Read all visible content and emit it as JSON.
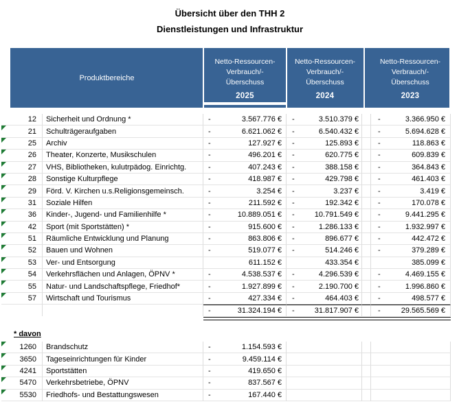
{
  "title": {
    "line1": "Übersicht über den THH 2",
    "line2": "Dienstleistungen und Infrastruktur"
  },
  "colors": {
    "header_bg": "#386394",
    "header_text": "#ffffff",
    "marker_green": "#1e7b34",
    "gridline": "#dcdcdc"
  },
  "header": {
    "product_col": "Produktbereiche",
    "value_col_lines": [
      "Netto-Ressourcen-",
      "Verbrauch/-",
      "Überschuss"
    ],
    "years": [
      "2025",
      "2024",
      "2023"
    ]
  },
  "rows": [
    {
      "code": "12",
      "name": "Sicherheit und Ordnung  *",
      "marker": false,
      "values": [
        {
          "sign": "-",
          "amount": "3.567.776 €"
        },
        {
          "sign": "-",
          "amount": "3.510.379 €"
        },
        {
          "sign": "-",
          "amount": "3.366.950 €"
        }
      ]
    },
    {
      "code": "21",
      "name": "Schulträgeraufgaben",
      "marker": true,
      "values": [
        {
          "sign": "-",
          "amount": "6.621.062 €"
        },
        {
          "sign": "-",
          "amount": "6.540.432 €"
        },
        {
          "sign": "-",
          "amount": "5.694.628 €"
        }
      ]
    },
    {
      "code": "25",
      "name": "Archiv",
      "marker": true,
      "values": [
        {
          "sign": "-",
          "amount": "127.927 €"
        },
        {
          "sign": "-",
          "amount": "125.893 €"
        },
        {
          "sign": "-",
          "amount": "118.863 €"
        }
      ]
    },
    {
      "code": "26",
      "name": "Theater, Konzerte, Musikschulen",
      "marker": true,
      "values": [
        {
          "sign": "-",
          "amount": "496.201 €"
        },
        {
          "sign": "-",
          "amount": "620.775 €"
        },
        {
          "sign": "-",
          "amount": "609.839 €"
        }
      ]
    },
    {
      "code": "27",
      "name": "VHS, Bibliotheken, kulutrpädog. Einrichtg.",
      "marker": true,
      "values": [
        {
          "sign": "-",
          "amount": "407.243 €"
        },
        {
          "sign": "-",
          "amount": "388.158 €"
        },
        {
          "sign": "-",
          "amount": "364.843 €"
        }
      ]
    },
    {
      "code": "28",
      "name": "Sonstige Kulturpflege",
      "marker": true,
      "values": [
        {
          "sign": "-",
          "amount": "418.987 €"
        },
        {
          "sign": "-",
          "amount": "429.798 €"
        },
        {
          "sign": "-",
          "amount": "461.403 €"
        }
      ]
    },
    {
      "code": "29",
      "name": "Förd. V. Kirchen u.s.Religionsgemeinsch.",
      "marker": true,
      "values": [
        {
          "sign": "-",
          "amount": "3.254 €"
        },
        {
          "sign": "-",
          "amount": "3.237 €"
        },
        {
          "sign": "-",
          "amount": "3.419 €"
        }
      ]
    },
    {
      "code": "31",
      "name": "Soziale Hilfen",
      "marker": true,
      "values": [
        {
          "sign": "-",
          "amount": "211.592 €"
        },
        {
          "sign": "-",
          "amount": "192.342 €"
        },
        {
          "sign": "-",
          "amount": "170.078 €"
        }
      ]
    },
    {
      "code": "36",
      "name": "Kinder-, Jugend- und Familienhilfe  *",
      "marker": true,
      "values": [
        {
          "sign": "-",
          "amount": "10.889.051 €"
        },
        {
          "sign": "-",
          "amount": "10.791.549 €"
        },
        {
          "sign": "-",
          "amount": "9.441.295 €"
        }
      ]
    },
    {
      "code": "42",
      "name": "Sport (mit Sportstätten)  *",
      "marker": true,
      "values": [
        {
          "sign": "-",
          "amount": "915.600 €"
        },
        {
          "sign": "-",
          "amount": "1.286.133 €"
        },
        {
          "sign": "-",
          "amount": "1.932.997 €"
        }
      ]
    },
    {
      "code": "51",
      "name": "Räumliche Entwicklung und Planung",
      "marker": true,
      "values": [
        {
          "sign": "-",
          "amount": "863.806 €"
        },
        {
          "sign": "-",
          "amount": "896.677 €"
        },
        {
          "sign": "-",
          "amount": "442.472 €"
        }
      ]
    },
    {
      "code": "52",
      "name": "Bauen und Wohnen",
      "marker": true,
      "values": [
        {
          "sign": "-",
          "amount": "519.077 €"
        },
        {
          "sign": "-",
          "amount": "514.246 €"
        },
        {
          "sign": "-",
          "amount": "379.289 €"
        }
      ]
    },
    {
      "code": "53",
      "name": "Ver- und Entsorgung",
      "marker": true,
      "values": [
        {
          "sign": "",
          "amount": "611.152 €"
        },
        {
          "sign": "",
          "amount": "433.354 €"
        },
        {
          "sign": "",
          "amount": "385.099 €"
        }
      ]
    },
    {
      "code": "54",
      "name": "Verkehrsflächen und Anlagen, ÖPNV *",
      "marker": true,
      "values": [
        {
          "sign": "-",
          "amount": "4.538.537 €"
        },
        {
          "sign": "-",
          "amount": "4.296.539 €"
        },
        {
          "sign": "-",
          "amount": "4.469.155 €"
        }
      ]
    },
    {
      "code": "55",
      "name": "Natur- und Landschaftspflege, Friedhof*",
      "marker": true,
      "values": [
        {
          "sign": "-",
          "amount": "1.927.899 €"
        },
        {
          "sign": "-",
          "amount": "2.190.700 €"
        },
        {
          "sign": "-",
          "amount": "1.996.860 €"
        }
      ]
    },
    {
      "code": "57",
      "name": "Wirtschaft und Tourismus",
      "marker": true,
      "values": [
        {
          "sign": "-",
          "amount": "427.334 €"
        },
        {
          "sign": "-",
          "amount": "464.403 €"
        },
        {
          "sign": "-",
          "amount": "498.577 €"
        }
      ]
    }
  ],
  "total": {
    "values": [
      {
        "sign": "-",
        "amount": "31.324.194 €"
      },
      {
        "sign": "-",
        "amount": "31.817.907 €"
      },
      {
        "sign": "-",
        "amount": "29.565.569 €"
      }
    ]
  },
  "davon": {
    "label": "* davon",
    "rows": [
      {
        "code": "1260",
        "name": "Brandschutz",
        "marker": true,
        "values": [
          {
            "sign": "-",
            "amount": "1.154.593 €"
          },
          {
            "sign": "",
            "amount": ""
          },
          {
            "sign": "",
            "amount": ""
          }
        ]
      },
      {
        "code": "3650",
        "name": "Tageseinrichtungen für Kinder",
        "marker": true,
        "values": [
          {
            "sign": "-",
            "amount": "9.459.114 €"
          },
          {
            "sign": "",
            "amount": ""
          },
          {
            "sign": "",
            "amount": ""
          }
        ]
      },
      {
        "code": "4241",
        "name": "Sportstätten",
        "marker": true,
        "values": [
          {
            "sign": "-",
            "amount": "419.650 €"
          },
          {
            "sign": "",
            "amount": ""
          },
          {
            "sign": "",
            "amount": ""
          }
        ]
      },
      {
        "code": "5470",
        "name": "Verkehrsbetriebe, ÖPNV",
        "marker": true,
        "values": [
          {
            "sign": "-",
            "amount": "837.567 €"
          },
          {
            "sign": "",
            "amount": ""
          },
          {
            "sign": "",
            "amount": ""
          }
        ]
      },
      {
        "code": "5530",
        "name": "Friedhofs- und Bestattungswesen",
        "marker": true,
        "values": [
          {
            "sign": "-",
            "amount": "167.440 €"
          },
          {
            "sign": "",
            "amount": ""
          },
          {
            "sign": "",
            "amount": ""
          }
        ]
      }
    ]
  }
}
